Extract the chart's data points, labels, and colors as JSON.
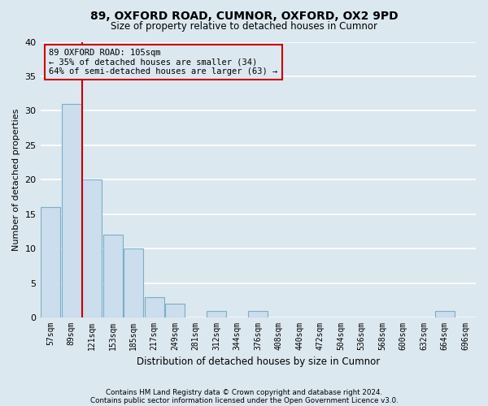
{
  "title": "89, OXFORD ROAD, CUMNOR, OXFORD, OX2 9PD",
  "subtitle": "Size of property relative to detached houses in Cumnor",
  "xlabel": "Distribution of detached houses by size in Cumnor",
  "ylabel": "Number of detached properties",
  "footnote1": "Contains HM Land Registry data © Crown copyright and database right 2024.",
  "footnote2": "Contains public sector information licensed under the Open Government Licence v3.0.",
  "bar_labels": [
    "57sqm",
    "89sqm",
    "121sqm",
    "153sqm",
    "185sqm",
    "217sqm",
    "249sqm",
    "281sqm",
    "312sqm",
    "344sqm",
    "376sqm",
    "408sqm",
    "440sqm",
    "472sqm",
    "504sqm",
    "536sqm",
    "568sqm",
    "600sqm",
    "632sqm",
    "664sqm",
    "696sqm"
  ],
  "bar_values": [
    16,
    31,
    20,
    12,
    10,
    3,
    2,
    0,
    1,
    0,
    1,
    0,
    0,
    0,
    0,
    0,
    0,
    0,
    0,
    1,
    0
  ],
  "bar_color": "#ccdded",
  "bar_edgecolor": "#7aafc8",
  "ylim": [
    0,
    40
  ],
  "yticks": [
    0,
    5,
    10,
    15,
    20,
    25,
    30,
    35,
    40
  ],
  "property_line_color": "#cc0000",
  "annotation_box_edgecolor": "#cc0000",
  "background_color": "#dce8f0",
  "grid_color": "#ffffff",
  "title_fontsize": 10,
  "subtitle_fontsize": 8.5
}
